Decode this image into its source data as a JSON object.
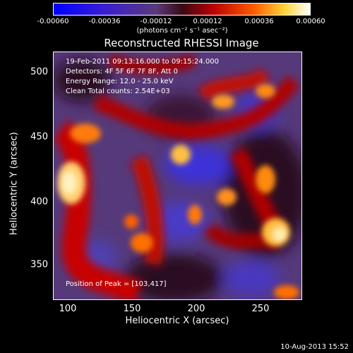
{
  "colorbar": {
    "tick_labels": [
      "-0.00060",
      "-0.00036",
      "-0.00012",
      "0.00012",
      "0.00036",
      "0.00060"
    ],
    "units": "(photons cm⁻² s⁻¹ asec⁻²)",
    "min": -0.0006,
    "max": 0.0006
  },
  "title": "Reconstructed RHESSI Image",
  "annotations": {
    "time_range": "19-Feb-2011 09:13:16.000 to 09:15:24.000",
    "detectors": "Detectors: 4F 5F 6F 7F 8F, Att 0",
    "energy_range": "Energy Range: 12.0 - 25.0 keV",
    "algorithm": "Clean     Total counts: 2.54E+03",
    "peak": "Position of Peak = [103,417]"
  },
  "axes": {
    "xlabel": "Heliocentric X (arcsec)",
    "ylabel": "Heliocentric Y (arcsec)",
    "xticks": [
      "100",
      "150",
      "200",
      "250"
    ],
    "yticks": [
      "500",
      "450",
      "400",
      "350"
    ],
    "xlim": [
      89,
      281
    ],
    "ylim": [
      321,
      513
    ]
  },
  "footer_timestamp": "10-Aug-2013 15:52",
  "colors": {
    "background": "#000000",
    "foreground": "#ffffff"
  }
}
